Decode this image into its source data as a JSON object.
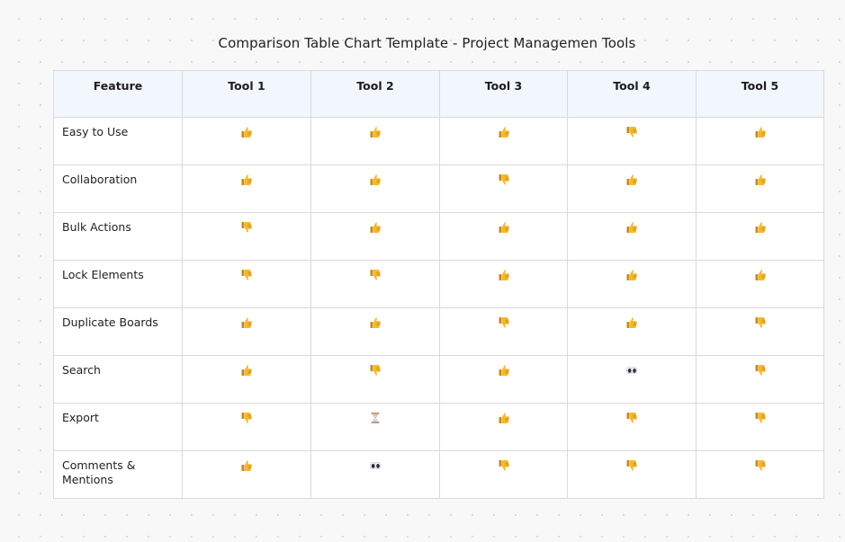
{
  "title": "Comparison Table Chart Template - Project Managemen Tools",
  "table": {
    "header_feature": "Feature",
    "tools": [
      "Tool 1",
      "Tool 2",
      "Tool 3",
      "Tool 4",
      "Tool 5"
    ],
    "rows": [
      {
        "feature": "Easy to Use",
        "ratings": [
          "thumbs-up",
          "thumbs-up",
          "thumbs-up",
          "thumbs-down",
          "thumbs-up"
        ]
      },
      {
        "feature": "Collaboration",
        "ratings": [
          "thumbs-up",
          "thumbs-up",
          "thumbs-down",
          "thumbs-up",
          "thumbs-up"
        ]
      },
      {
        "feature": "Bulk Actions",
        "ratings": [
          "thumbs-down",
          "thumbs-up",
          "thumbs-up",
          "thumbs-up",
          "thumbs-up"
        ]
      },
      {
        "feature": "Lock Elements",
        "ratings": [
          "thumbs-down",
          "thumbs-down",
          "thumbs-up",
          "thumbs-up",
          "thumbs-up"
        ]
      },
      {
        "feature": "Duplicate Boards",
        "ratings": [
          "thumbs-up",
          "thumbs-up",
          "thumbs-down",
          "thumbs-up",
          "thumbs-down"
        ]
      },
      {
        "feature": "Search",
        "ratings": [
          "thumbs-up",
          "thumbs-down",
          "thumbs-up",
          "eyes",
          "thumbs-down"
        ]
      },
      {
        "feature": "Export",
        "ratings": [
          "thumbs-down",
          "hourglass",
          "thumbs-up",
          "thumbs-down",
          "thumbs-down"
        ]
      },
      {
        "feature": "Comments & Mentions",
        "ratings": [
          "thumbs-up",
          "eyes",
          "thumbs-down",
          "thumbs-down",
          "thumbs-down"
        ]
      }
    ]
  },
  "colors": {
    "header_bg": "#f2f6fd",
    "border": "#d9d9de",
    "thumb": "#f5b82e",
    "thumb_shade": "#c98a14"
  }
}
